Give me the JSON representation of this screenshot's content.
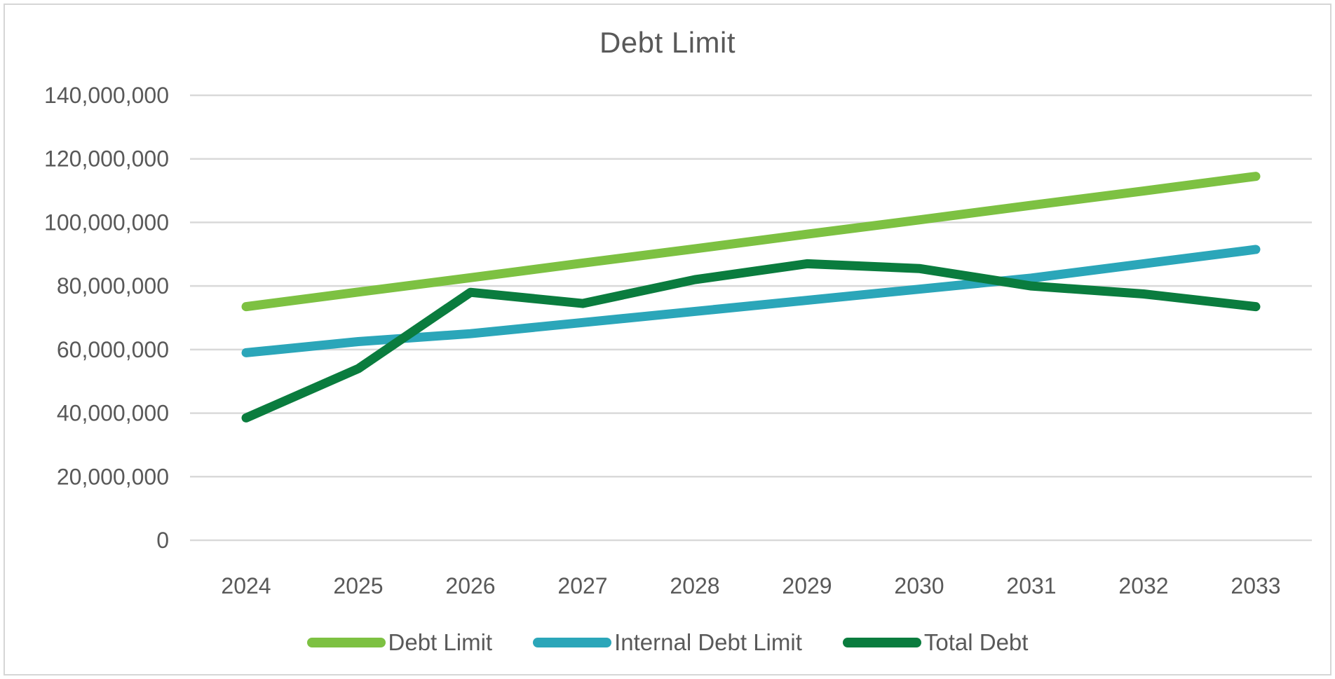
{
  "chart_data": {
    "type": "line",
    "title": "Debt Limit",
    "xlabel": "",
    "ylabel": "",
    "categories": [
      "2024",
      "2025",
      "2026",
      "2027",
      "2028",
      "2029",
      "2030",
      "2031",
      "2032",
      "2033"
    ],
    "series": [
      {
        "name": "Debt Limit",
        "color": "#7dc142",
        "values": [
          73500000,
          78100000,
          82600000,
          87200000,
          91700000,
          96300000,
          100800000,
          105400000,
          109900000,
          114500000
        ]
      },
      {
        "name": "Internal Debt Limit",
        "color": "#2ba6b9",
        "values": [
          59000000,
          62500000,
          65000000,
          68500000,
          72000000,
          75500000,
          79000000,
          82500000,
          87000000,
          91500000
        ]
      },
      {
        "name": "Total Debt",
        "color": "#0a7c3e",
        "values": [
          38500000,
          54000000,
          78000000,
          74500000,
          82000000,
          87000000,
          85500000,
          80000000,
          77500000,
          73500000
        ]
      }
    ],
    "ylim": [
      0,
      140000000
    ],
    "ytick_step": 20000000,
    "ytick_labels": [
      "0",
      "20,000,000",
      "40,000,000",
      "60,000,000",
      "80,000,000",
      "100,000,000",
      "120,000,000",
      "140,000,000"
    ],
    "grid": true,
    "legend_position": "bottom",
    "text_color": "#595959",
    "gridline_color": "#d9d9d9"
  }
}
